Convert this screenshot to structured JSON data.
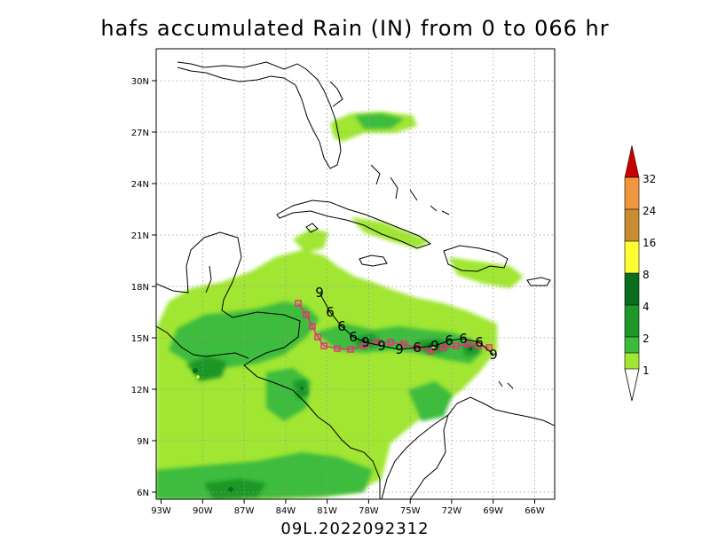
{
  "title": "hafs accumulated Rain (IN) from 0 to 066 hr",
  "footer": "09L.2022092312",
  "map": {
    "x_ticks": [
      "93W",
      "90W",
      "87W",
      "84W",
      "81W",
      "78W",
      "75W",
      "72W",
      "69W",
      "66W"
    ],
    "y_ticks": [
      "30N",
      "27N",
      "24N",
      "21N",
      "18N",
      "15N",
      "12N",
      "9N",
      "6N"
    ],
    "land_color": "#ffffff",
    "coast_color": "#000000",
    "grid_style": "dotted"
  },
  "colorbar": {
    "levels": [
      "1",
      "2",
      "4",
      "8",
      "16",
      "24",
      "32"
    ],
    "colors": [
      "#a0e632",
      "#3cbc3c",
      "#1e9628",
      "#0a6e1e",
      "#ffff32",
      "#c88c32",
      "#f0963c",
      "#c80000"
    ]
  },
  "track": {
    "forecast_color": "#000000",
    "best_track_color": "#e6327a",
    "forecast_symbol": "6",
    "best_symbol": "□"
  }
}
